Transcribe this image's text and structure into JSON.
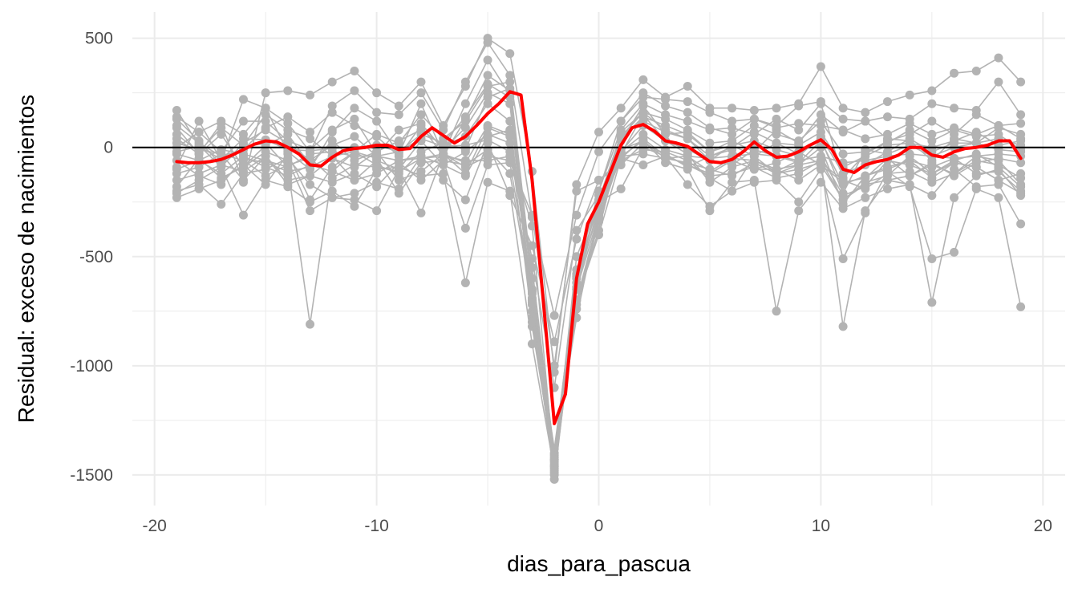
{
  "chart_data": {
    "type": "line",
    "title": "",
    "xlabel": "dias_para_pascua",
    "ylabel": "Residual: exceso de nacimientos",
    "xlim": [
      -21,
      21
    ],
    "ylim": [
      -1640,
      620
    ],
    "x_ticks": [
      -20,
      -10,
      0,
      10,
      20
    ],
    "x_tick_labels": [
      "-20",
      "-10",
      "0",
      "10",
      "20"
    ],
    "y_ticks": [
      500,
      0,
      -500,
      -1000,
      -1500
    ],
    "y_tick_labels": [
      "500",
      "0",
      "-500",
      "-1000",
      "-1500"
    ],
    "grid": true,
    "legend": "none",
    "reference_line": {
      "y": 0,
      "color": "#000000"
    },
    "colors": {
      "background_series": "#b3b3b3",
      "mean_series": "#ff0000",
      "grid": "#ebebeb"
    },
    "x": [
      -19,
      -18,
      -17,
      -16,
      -15,
      -14,
      -13,
      -12,
      -11,
      -10,
      -9,
      -8,
      -7,
      -6,
      -5,
      -4,
      -3,
      -2,
      -1,
      0,
      1,
      2,
      3,
      4,
      5,
      6,
      7,
      8,
      9,
      10,
      11,
      12,
      13,
      14,
      15,
      16,
      17,
      18,
      19
    ],
    "mean_series": {
      "x": [
        -19,
        -18.5,
        -18,
        -17.5,
        -17,
        -16.5,
        -16,
        -15.5,
        -15,
        -14.5,
        -14,
        -13.5,
        -13,
        -12.5,
        -12,
        -11.5,
        -11,
        -10.5,
        -10,
        -9.5,
        -9,
        -8.5,
        -8,
        -7.5,
        -7,
        -6.5,
        -6,
        -5.5,
        -5,
        -4.5,
        -4,
        -3.5,
        -3,
        -2.5,
        -2,
        -1.5,
        -1,
        -0.5,
        0,
        0.5,
        1,
        1.5,
        2,
        2.5,
        3,
        3.5,
        4,
        4.5,
        5,
        5.5,
        6,
        6.5,
        7,
        7.5,
        8,
        8.5,
        9,
        9.5,
        10,
        10.5,
        11,
        11.5,
        12,
        12.5,
        13,
        13.5,
        14,
        14.5,
        15,
        15.5,
        16,
        16.5,
        17,
        17.5,
        18,
        18.5,
        19
      ],
      "values": [
        -65,
        -70,
        -70,
        -65,
        -55,
        -35,
        -10,
        15,
        30,
        25,
        0,
        -30,
        -80,
        -85,
        -45,
        -15,
        -5,
        0,
        10,
        10,
        -10,
        -5,
        50,
        90,
        55,
        20,
        50,
        100,
        155,
        200,
        255,
        240,
        -150,
        -700,
        -1265,
        -1130,
        -600,
        -350,
        -250,
        -120,
        10,
        90,
        105,
        75,
        30,
        20,
        5,
        -30,
        -65,
        -70,
        -55,
        -20,
        25,
        -15,
        -45,
        -40,
        -20,
        10,
        35,
        -10,
        -100,
        -115,
        -80,
        -65,
        -55,
        -35,
        0,
        0,
        -35,
        -45,
        -20,
        -5,
        0,
        10,
        30,
        30,
        -50
      ]
    },
    "series": [
      {
        "values": [
          -20,
          5,
          -55,
          40,
          35,
          -10,
          -15,
          -5,
          0,
          10,
          -20,
          40,
          5,
          10,
          35,
          -20,
          -360,
          -1470,
          -500,
          -250,
          50,
          160,
          80,
          40,
          -60,
          10,
          -40,
          20,
          -30,
          40,
          -210,
          -10,
          -30,
          10,
          -40,
          0,
          20,
          -10,
          -20
        ]
      },
      {
        "values": [
          -100,
          -60,
          -120,
          -40,
          -90,
          -130,
          -80,
          -110,
          -150,
          -60,
          -100,
          30,
          -80,
          -20,
          60,
          20,
          -550,
          -1410,
          -780,
          -300,
          -20,
          100,
          30,
          -30,
          -160,
          -90,
          -60,
          -100,
          -80,
          0,
          -260,
          -130,
          -90,
          -60,
          -140,
          -70,
          -90,
          -150,
          -120
        ]
      },
      {
        "values": [
          60,
          -20,
          90,
          10,
          150,
          80,
          40,
          -40,
          -20,
          60,
          20,
          150,
          40,
          120,
          280,
          300,
          -600,
          -1430,
          -650,
          -200,
          80,
          200,
          150,
          120,
          80,
          90,
          60,
          130,
          80,
          200,
          -140,
          -30,
          30,
          60,
          120,
          60,
          150,
          100,
          40
        ]
      },
      {
        "values": [
          140,
          70,
          120,
          60,
          180,
          -20,
          -100,
          70,
          180,
          120,
          -30,
          200,
          -30,
          200,
          400,
          240,
          -780,
          -1490,
          -700,
          -380,
          30,
          190,
          60,
          70,
          -20,
          30,
          -20,
          80,
          20,
          150,
          70,
          120,
          40,
          30,
          -60,
          40,
          20,
          90,
          60
        ]
      },
      {
        "values": [
          -150,
          -120,
          -80,
          -110,
          -40,
          -170,
          -130,
          -160,
          -120,
          -180,
          -70,
          -150,
          -60,
          -80,
          -10,
          -120,
          -700,
          -1460,
          -600,
          -300,
          -50,
          40,
          -40,
          -80,
          -120,
          -60,
          -100,
          -70,
          -20,
          -80,
          -240,
          -170,
          -150,
          -130,
          -80,
          -120,
          -40,
          -60,
          -170
        ]
      },
      {
        "values": [
          -230,
          -190,
          -150,
          -80,
          -170,
          -30,
          -240,
          -90,
          -20,
          -80,
          -120,
          -20,
          20,
          -10,
          230,
          270,
          -820,
          -1450,
          -740,
          -340,
          -30,
          150,
          30,
          -10,
          -60,
          -80,
          -10,
          -40,
          -70,
          30,
          -170,
          -130,
          -100,
          -60,
          -90,
          -50,
          -120,
          -110,
          -200
        ]
      },
      {
        "values": [
          100,
          20,
          -40,
          -10,
          90,
          140,
          70,
          160,
          100,
          50,
          -40,
          100,
          -40,
          130,
          330,
          260,
          -650,
          -1400,
          -580,
          -200,
          120,
          250,
          190,
          160,
          90,
          60,
          130,
          90,
          110,
          100,
          80,
          40,
          60,
          110,
          60,
          90,
          60,
          100,
          110
        ]
      },
      {
        "values": [
          -120,
          -90,
          -30,
          -60,
          -130,
          -80,
          -50,
          -140,
          -80,
          -90,
          -110,
          -50,
          -30,
          -70,
          100,
          60,
          -660,
          -1430,
          -560,
          -270,
          -20,
          60,
          -10,
          -40,
          -110,
          -50,
          -60,
          -110,
          -60,
          -40,
          -220,
          -180,
          -60,
          -80,
          -120,
          -70,
          -90,
          -150,
          -210
        ]
      },
      {
        "values": [
          40,
          -30,
          60,
          -90,
          10,
          60,
          -80,
          30,
          -60,
          -20,
          30,
          80,
          10,
          50,
          200,
          120,
          -720,
          -1380,
          -620,
          -240,
          60,
          120,
          70,
          40,
          -40,
          0,
          70,
          20,
          10,
          70,
          -90,
          -40,
          10,
          20,
          0,
          30,
          70,
          10,
          30
        ]
      },
      {
        "values": [
          -60,
          -130,
          -170,
          -50,
          -70,
          -110,
          -90,
          -40,
          -150,
          -120,
          -60,
          -40,
          -80,
          -130,
          50,
          80,
          -690,
          -1420,
          -640,
          -270,
          -40,
          30,
          -50,
          -70,
          -100,
          -130,
          -70,
          -120,
          -100,
          -70,
          -150,
          -190,
          -120,
          -110,
          -160,
          -120,
          -60,
          -80,
          -140
        ]
      },
      {
        "values": [
          0,
          70,
          -20,
          120,
          120,
          30,
          -10,
          80,
          130,
          -30,
          80,
          110,
          -10,
          90,
          250,
          200,
          -750,
          -1500,
          -700,
          -320,
          70,
          160,
          130,
          80,
          20,
          30,
          100,
          60,
          30,
          120,
          -30,
          -20,
          20,
          80,
          30,
          80,
          50,
          60,
          -10
        ]
      },
      {
        "values": [
          170,
          10,
          -90,
          20,
          80,
          20,
          -60,
          10,
          50,
          -40,
          -20,
          60,
          20,
          140,
          290,
          230,
          -710,
          -1520,
          -650,
          -310,
          40,
          140,
          100,
          60,
          -20,
          10,
          30,
          -10,
          -40,
          50,
          -120,
          -80,
          -20,
          40,
          -20,
          20,
          20,
          40,
          10
        ]
      },
      {
        "values": [
          -180,
          -50,
          -140,
          -90,
          -20,
          -60,
          -290,
          -230,
          -240,
          -290,
          -100,
          -300,
          -30,
          -120,
          90,
          50,
          -800,
          -1460,
          -720,
          -330,
          -10,
          30,
          -70,
          -100,
          -290,
          -160,
          -150,
          -750,
          -290,
          -160,
          -280,
          -230,
          -190,
          -170,
          -220,
          -100,
          -180,
          -170,
          -350
        ]
      },
      {
        "values": [
          -210,
          -150,
          -90,
          -310,
          -150,
          -180,
          -250,
          -200,
          -270,
          -100,
          -90,
          -130,
          -120,
          -620,
          -160,
          -200,
          -900,
          -1480,
          -700,
          -400,
          -50,
          -80,
          -40,
          -170,
          -270,
          -200,
          -160,
          -150,
          -250,
          -100,
          -510,
          -300,
          -110,
          -180,
          -510,
          -480,
          -190,
          -230,
          -730
        ]
      },
      {
        "values": [
          130,
          30,
          -80,
          0,
          20,
          -90,
          -810,
          -110,
          -20,
          -50,
          -210,
          -70,
          -60,
          -370,
          -80,
          -70,
          -670,
          -1440,
          -590,
          -250,
          -190,
          0,
          -40,
          -80,
          -130,
          -120,
          -90,
          -140,
          -120,
          -60,
          -820,
          -290,
          -150,
          -170,
          -710,
          -230,
          -130,
          -100,
          -220
        ]
      },
      {
        "values": [
          90,
          -30,
          110,
          -160,
          250,
          260,
          240,
          300,
          350,
          250,
          190,
          300,
          100,
          280,
          500,
          430,
          -110,
          -1030,
          -170,
          70,
          180,
          310,
          230,
          280,
          180,
          180,
          170,
          180,
          200,
          370,
          180,
          160,
          210,
          240,
          260,
          340,
          350,
          410,
          300
        ]
      },
      {
        "values": [
          -90,
          120,
          -60,
          220,
          180,
          110,
          -20,
          190,
          260,
          160,
          150,
          250,
          80,
          300,
          480,
          330,
          -320,
          -770,
          -310,
          -20,
          120,
          230,
          220,
          210,
          160,
          120,
          130,
          100,
          190,
          210,
          130,
          120,
          140,
          130,
          200,
          180,
          170,
          300,
          150
        ]
      },
      {
        "values": [
          -200,
          -170,
          -260,
          -120,
          -100,
          -50,
          -170,
          -230,
          -210,
          -160,
          -190,
          -40,
          -150,
          -240,
          20,
          -220,
          -450,
          -890,
          -420,
          -150,
          -60,
          -10,
          -20,
          -60,
          -140,
          -200,
          -40,
          -120,
          -80,
          -60,
          -240,
          -160,
          -130,
          -40,
          -120,
          -60,
          -30,
          -90,
          -180
        ]
      },
      {
        "values": [
          20,
          -10,
          -30,
          -150,
          -40,
          -150,
          -130,
          -50,
          -90,
          -20,
          -150,
          -110,
          -30,
          -90,
          -40,
          -60,
          -310,
          -1000,
          -200,
          -150,
          -80,
          20,
          -30,
          -90,
          -40,
          -10,
          -100,
          -100,
          -150,
          -80,
          -160,
          -140,
          -50,
          -130,
          -70,
          -130,
          -70,
          -50,
          -70
        ]
      },
      {
        "values": [
          -30,
          -60,
          -10,
          -30,
          -60,
          -90,
          -30,
          -20,
          -40,
          -40,
          -60,
          -50,
          -40,
          -60,
          -60,
          -40,
          -510,
          -1100,
          -380,
          -220,
          -40,
          -30,
          -50,
          -40,
          -50,
          -40,
          -30,
          -40,
          -60,
          -40,
          -70,
          -60,
          -40,
          -30,
          -40,
          -50,
          -40,
          -30,
          -40
        ]
      }
    ]
  }
}
